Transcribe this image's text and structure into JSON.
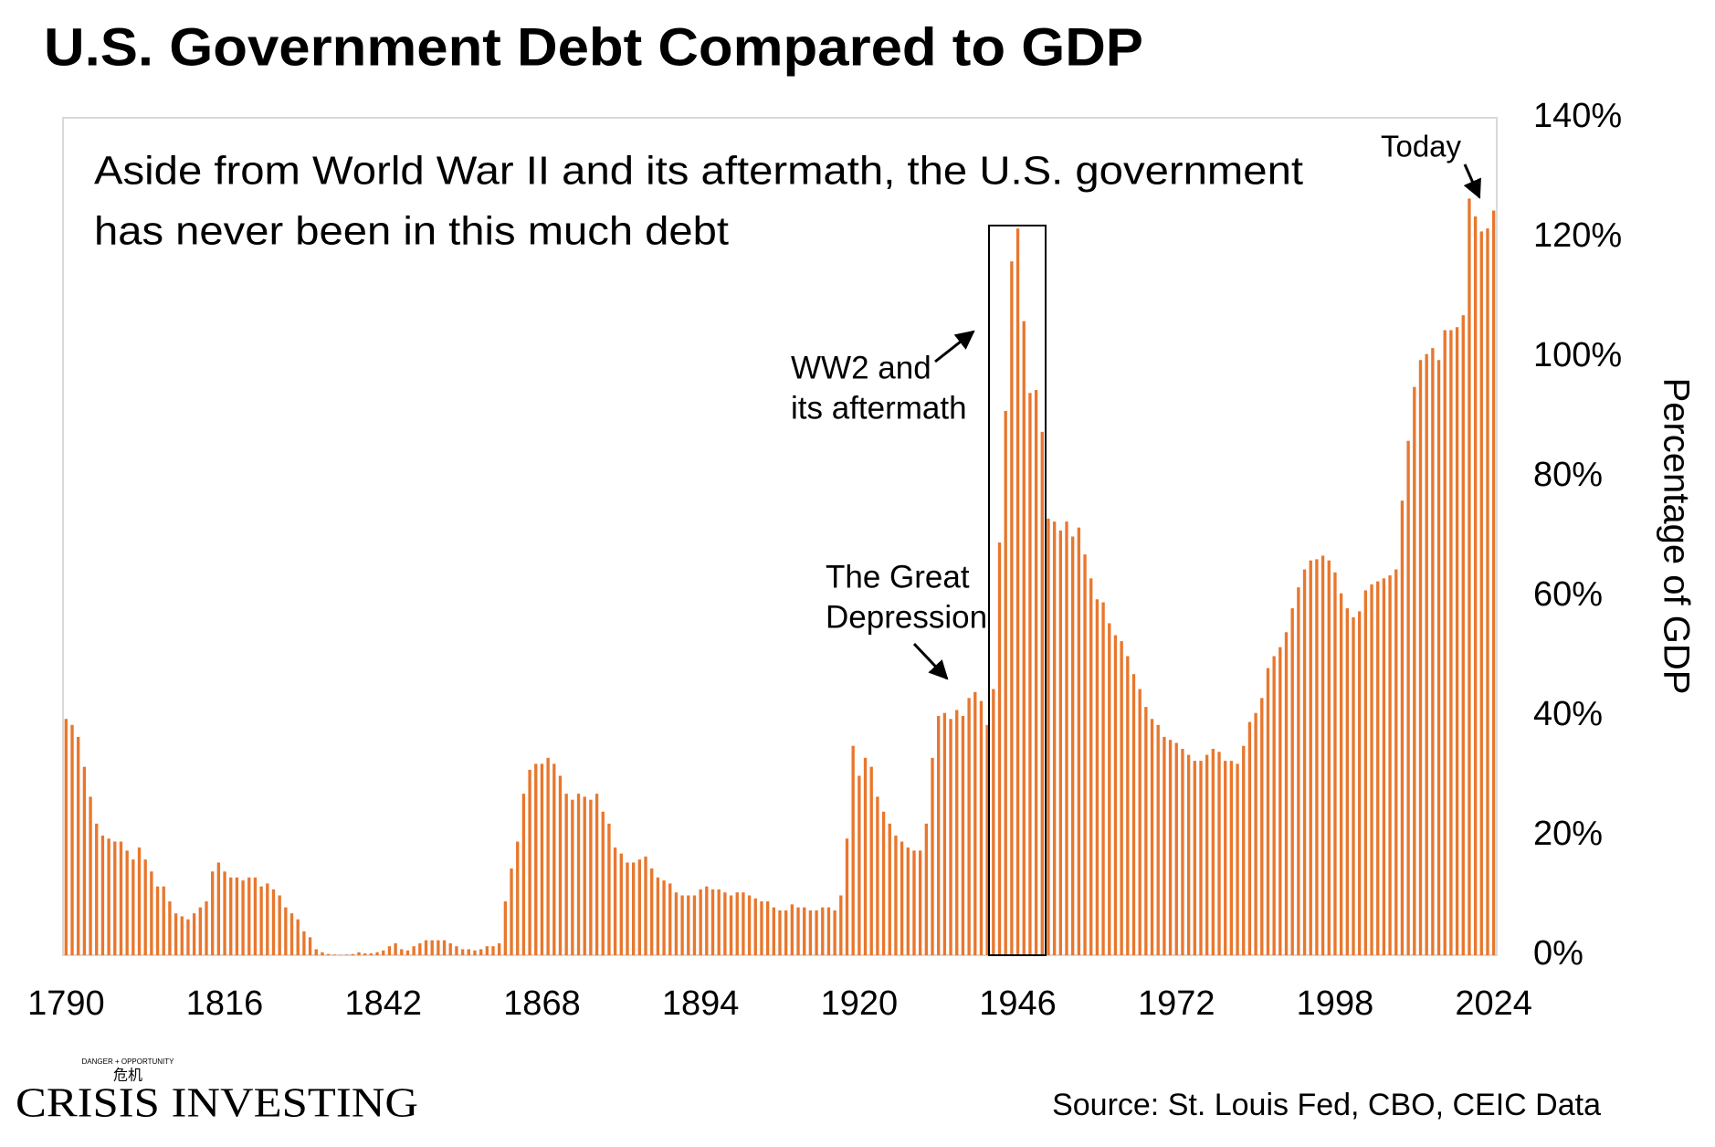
{
  "chart_data": {
    "type": "bar",
    "title": "U.S. Government Debt Compared to GDP",
    "subtitle": [
      "Aside from World War II and its aftermath, the U.S. government",
      "has never been in this much debt"
    ],
    "y_label": "Percentage of GDP",
    "annotations": [
      {
        "text": [
          "Today"
        ]
      },
      {
        "text": [
          "WW2 and",
          "its aftermath"
        ]
      },
      {
        "text": [
          "The Great",
          "Depression"
        ]
      }
    ],
    "source": "Source: St. Louis Fed, CBO, CEIC Data",
    "logo": {
      "name": "CRISIS INVESTING",
      "tagline": "DANGER + OPPORTUNITY",
      "mark": "危机"
    },
    "color": "#e8772e",
    "x": [
      1790,
      1791,
      1792,
      1793,
      1794,
      1795,
      1796,
      1797,
      1798,
      1799,
      1800,
      1801,
      1802,
      1803,
      1804,
      1805,
      1806,
      1807,
      1808,
      1809,
      1810,
      1811,
      1812,
      1813,
      1814,
      1815,
      1816,
      1817,
      1818,
      1819,
      1820,
      1821,
      1822,
      1823,
      1824,
      1825,
      1826,
      1827,
      1828,
      1829,
      1830,
      1831,
      1832,
      1833,
      1834,
      1835,
      1836,
      1837,
      1838,
      1839,
      1840,
      1841,
      1842,
      1843,
      1844,
      1845,
      1846,
      1847,
      1848,
      1849,
      1850,
      1851,
      1852,
      1853,
      1854,
      1855,
      1856,
      1857,
      1858,
      1859,
      1860,
      1861,
      1862,
      1863,
      1864,
      1865,
      1866,
      1867,
      1868,
      1869,
      1870,
      1871,
      1872,
      1873,
      1874,
      1875,
      1876,
      1877,
      1878,
      1879,
      1880,
      1881,
      1882,
      1883,
      1884,
      1885,
      1886,
      1887,
      1888,
      1889,
      1890,
      1891,
      1892,
      1893,
      1894,
      1895,
      1896,
      1897,
      1898,
      1899,
      1900,
      1901,
      1902,
      1903,
      1904,
      1905,
      1906,
      1907,
      1908,
      1909,
      1910,
      1911,
      1912,
      1913,
      1914,
      1915,
      1916,
      1917,
      1918,
      1919,
      1920,
      1921,
      1922,
      1923,
      1924,
      1925,
      1926,
      1927,
      1928,
      1929,
      1930,
      1931,
      1932,
      1933,
      1934,
      1935,
      1936,
      1937,
      1938,
      1939,
      1940,
      1941,
      1942,
      1943,
      1944,
      1945,
      1946,
      1947,
      1948,
      1949,
      1950,
      1951,
      1952,
      1953,
      1954,
      1955,
      1956,
      1957,
      1958,
      1959,
      1960,
      1961,
      1962,
      1963,
      1964,
      1965,
      1966,
      1967,
      1968,
      1969,
      1970,
      1971,
      1972,
      1973,
      1974,
      1975,
      1976,
      1977,
      1978,
      1979,
      1980,
      1981,
      1982,
      1983,
      1984,
      1985,
      1986,
      1987,
      1988,
      1989,
      1990,
      1991,
      1992,
      1993,
      1994,
      1995,
      1996,
      1997,
      1998,
      1999,
      2000,
      2001,
      2002,
      2003,
      2004,
      2005,
      2006,
      2007,
      2008,
      2009,
      2010,
      2011,
      2012,
      2013,
      2014,
      2015,
      2016,
      2017,
      2018,
      2019,
      2020,
      2021,
      2022,
      2023,
      2024
    ],
    "values": [
      39.5,
      38.5,
      36.5,
      31.5,
      26.5,
      22,
      20,
      19.5,
      19,
      19,
      17.5,
      16,
      18,
      16,
      14,
      11.5,
      11.5,
      9,
      7,
      6.5,
      6,
      7,
      8,
      9,
      14,
      15.5,
      14,
      13,
      13,
      12.5,
      13,
      13,
      11.5,
      12,
      11,
      10,
      8,
      7,
      6,
      4,
      3,
      1,
      0.5,
      0.2,
      0.1,
      0.05,
      0.1,
      0.2,
      0.5,
      0.3,
      0.3,
      0.5,
      0.8,
      1.5,
      2,
      1,
      0.8,
      1.5,
      2,
      2.5,
      2.5,
      2.5,
      2.5,
      2,
      1.5,
      1,
      1,
      0.8,
      1,
      1.5,
      1.5,
      2,
      9,
      14.5,
      19,
      27,
      31,
      32,
      32,
      33,
      32,
      30,
      27,
      26,
      27,
      26.5,
      26,
      27,
      24,
      22,
      18,
      17,
      15.5,
      15.5,
      16,
      16.5,
      14.5,
      13,
      12.5,
      12,
      10.5,
      10,
      10,
      10,
      11,
      11.5,
      11,
      11,
      10.5,
      10,
      10.5,
      10.5,
      10,
      9.5,
      9,
      9,
      8,
      7.5,
      7.5,
      8.5,
      8,
      8,
      7.5,
      7.5,
      8,
      8,
      7.5,
      10,
      19.5,
      35,
      30,
      33,
      31.5,
      26.5,
      24,
      22,
      20,
      19,
      18,
      17.5,
      17.5,
      22,
      33,
      40,
      40.5,
      39.5,
      41,
      40,
      43,
      44,
      42.5,
      38.5,
      44.5,
      69,
      91,
      116,
      121.5,
      106,
      94,
      94.5,
      87.5,
      73,
      72.5,
      71,
      72.5,
      70,
      71.5,
      67,
      63,
      59.5,
      59,
      55.5,
      53.5,
      52.5,
      50,
      47,
      44.5,
      41.5,
      39.5,
      38.5,
      36.5,
      36,
      35.5,
      34.5,
      33.5,
      32.5,
      32.5,
      33.5,
      34.5,
      34,
      32.5,
      32.5,
      32,
      35,
      39,
      40.5,
      43,
      48,
      50,
      51.5,
      54,
      58,
      61.5,
      64.5,
      66,
      66.2,
      66.8,
      66,
      64,
      60.5,
      58,
      56.5,
      57.5,
      61,
      62,
      62.5,
      63,
      63.5,
      64.5,
      76,
      86,
      95,
      99.5,
      100.5,
      101.5,
      99.5,
      104.5,
      104.5,
      105,
      107,
      126.5,
      123.5,
      121,
      121.5,
      124.5
    ],
    "xlim": [
      1789.5,
      2024.5
    ],
    "xticks": [
      1790,
      1816,
      1842,
      1868,
      1894,
      1920,
      1946,
      1972,
      1998,
      2024
    ],
    "ylim": [
      0,
      140
    ],
    "yticks": [
      {
        "value": 0,
        "label": "0%"
      },
      {
        "value": 20,
        "label": "20%"
      },
      {
        "value": 40,
        "label": "40%"
      },
      {
        "value": 60,
        "label": "60%"
      },
      {
        "value": 80,
        "label": "80%"
      },
      {
        "value": 100,
        "label": "100%"
      },
      {
        "value": 120,
        "label": "120%"
      },
      {
        "value": 140,
        "label": "140%"
      }
    ],
    "y_axis_side": "right",
    "grid": false
  }
}
